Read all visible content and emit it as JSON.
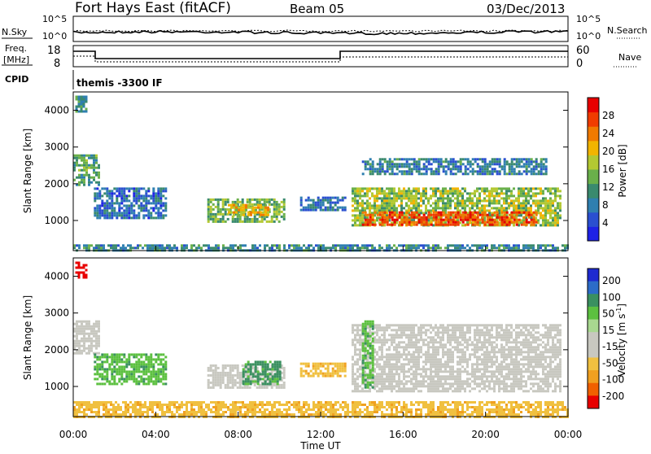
{
  "header": {
    "station": "Fort Hays East (fitACF)",
    "beam": "Beam 05",
    "date": "03/Dec/2013"
  },
  "top_panels": {
    "noise_left_label": "N.Sky",
    "noise_right_label": "N.Search",
    "noise_ticks_left": [
      "10^5",
      "10^0"
    ],
    "noise_ticks_right": [
      "10^5",
      "10^0"
    ],
    "freq_label_1": "Freq.",
    "freq_label_2": "[MHz]",
    "freq_ticks": [
      "18",
      "8"
    ],
    "nave_label": "Nave",
    "nave_ticks": [
      "60",
      "0"
    ],
    "cpid_label": "CPID",
    "cpid_value": "themis -3300 IF"
  },
  "colors": {
    "power_scale": [
      "#1e22e6",
      "#2a4fd0",
      "#2f7fb0",
      "#3a8a6e",
      "#6ab04a",
      "#b3c832",
      "#f2b400",
      "#f07a00",
      "#f03c00",
      "#e80000"
    ],
    "velocity_scale": [
      "#1e2ad0",
      "#2c6cc8",
      "#3a9060",
      "#5cc040",
      "#a8d890",
      "#c8c8c0",
      "#c8c8c0",
      "#f0c040",
      "#f0a020",
      "#f06000",
      "#e80000"
    ]
  },
  "chart_data": [
    {
      "type": "heatmap",
      "name": "power",
      "ylabel": "Slant Range [km]",
      "xlim": [
        "00:00",
        "24:00"
      ],
      "ylim": [
        180,
        4500
      ],
      "y_ticks": [
        "1000",
        "2000",
        "3000",
        "4000"
      ],
      "colorbar_label": "Power [dB]",
      "colorbar_ticks": [
        "4",
        "8",
        "12",
        "16",
        "20",
        "24",
        "28"
      ],
      "colorbar_range": [
        0,
        32
      ],
      "regions": [
        {
          "t0": 0.0,
          "t1": 1.2,
          "r0": 2000,
          "r1": 2800,
          "v": 12
        },
        {
          "t0": 0.1,
          "t1": 0.6,
          "r0": 4000,
          "r1": 4400,
          "v": 10
        },
        {
          "t0": 1.0,
          "t1": 4.5,
          "r0": 1100,
          "r1": 1900,
          "v": 6
        },
        {
          "t0": 6.5,
          "t1": 10.2,
          "r0": 1000,
          "r1": 1600,
          "v": 14
        },
        {
          "t0": 7.5,
          "t1": 9.5,
          "r0": 1150,
          "r1": 1450,
          "v": 20
        },
        {
          "t0": 11.0,
          "t1": 13.2,
          "r0": 1300,
          "r1": 1650,
          "v": 7
        },
        {
          "t0": 13.5,
          "t1": 23.6,
          "r0": 850,
          "r1": 1900,
          "v": 16
        },
        {
          "t0": 14.0,
          "t1": 22.5,
          "r0": 900,
          "r1": 1250,
          "v": 28
        },
        {
          "t0": 14.0,
          "t1": 23.0,
          "r0": 2300,
          "r1": 2700,
          "v": 8
        },
        {
          "t0": 0.0,
          "t1": 24.0,
          "r0": 200,
          "r1": 350,
          "v": 9
        }
      ]
    },
    {
      "type": "heatmap",
      "name": "velocity",
      "ylabel": "Slant Range [km]",
      "xlabel": "Time UT",
      "x_ticks": [
        "00:00",
        "04:00",
        "08:00",
        "12:00",
        "16:00",
        "20:00",
        "00:00"
      ],
      "ylim": [
        180,
        4500
      ],
      "y_ticks": [
        "1000",
        "2000",
        "3000",
        "4000"
      ],
      "colorbar_label_main": "Velocity",
      "colorbar_label_unit": "[m s",
      "colorbar_label_exp": "-1",
      "colorbar_label_close": "]",
      "colorbar_ticks": [
        "200",
        "100",
        "50",
        "15",
        "-15",
        "-50",
        "-100",
        "-200"
      ],
      "regions": [
        {
          "t0": 0.0,
          "t1": 1.2,
          "r0": 1900,
          "r1": 2800,
          "v": 0
        },
        {
          "t0": 0.1,
          "t1": 0.6,
          "r0": 4000,
          "r1": 4400,
          "v": -250
        },
        {
          "t0": 1.0,
          "t1": 4.5,
          "r0": 1100,
          "r1": 1900,
          "v": 40
        },
        {
          "t0": 6.5,
          "t1": 10.2,
          "r0": 1000,
          "r1": 1600,
          "v": 0
        },
        {
          "t0": 8.2,
          "t1": 10.0,
          "r0": 1050,
          "r1": 1700,
          "v": 60
        },
        {
          "t0": 11.0,
          "t1": 13.2,
          "r0": 1300,
          "r1": 1650,
          "v": -40
        },
        {
          "t0": 13.5,
          "t1": 23.6,
          "r0": 850,
          "r1": 2700,
          "v": 0
        },
        {
          "t0": 14.0,
          "t1": 14.5,
          "r0": 1000,
          "r1": 2800,
          "v": 40
        },
        {
          "t0": 0.0,
          "t1": 24.0,
          "r0": 200,
          "r1": 600,
          "v": -40
        }
      ]
    }
  ]
}
